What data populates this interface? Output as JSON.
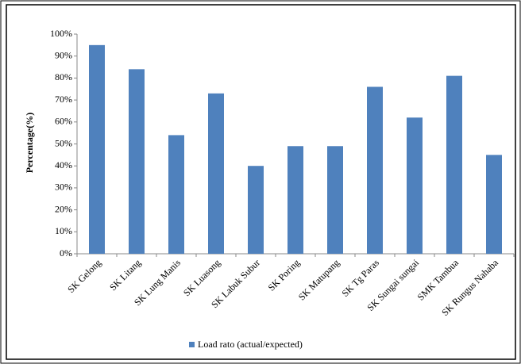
{
  "chart_data": {
    "type": "bar",
    "y_label": "Percentage(%)",
    "categories": [
      "SK Gelong",
      "SK Litang",
      "SK Lung Manis",
      "SK Luasong",
      "SK Labuk Subur",
      "SK Poring",
      "SK Matupang",
      "SK Tg Paras",
      "SK Sungai sungai",
      "SMK Tambua",
      "SK Rungus Nahaba"
    ],
    "series": [
      {
        "name": "Load rato (actual/expected)",
        "color": "#4f81bd",
        "values": [
          95,
          84,
          54,
          73,
          40,
          49,
          49,
          76,
          62,
          81,
          45
        ]
      }
    ],
    "ylim": [
      0,
      100
    ],
    "yticks": [
      {
        "value": 0,
        "label": "0%"
      },
      {
        "value": 10,
        "label": "10%"
      },
      {
        "value": 20,
        "label": "20%"
      },
      {
        "value": 30,
        "label": "30%"
      },
      {
        "value": 40,
        "label": "40%"
      },
      {
        "value": 50,
        "label": "50%"
      },
      {
        "value": 60,
        "label": "60%"
      },
      {
        "value": 70,
        "label": "70%"
      },
      {
        "value": 80,
        "label": "80%"
      },
      {
        "value": 90,
        "label": "90%"
      },
      {
        "value": 100,
        "label": "100%"
      }
    ],
    "grid": false,
    "legend": "bottom"
  }
}
